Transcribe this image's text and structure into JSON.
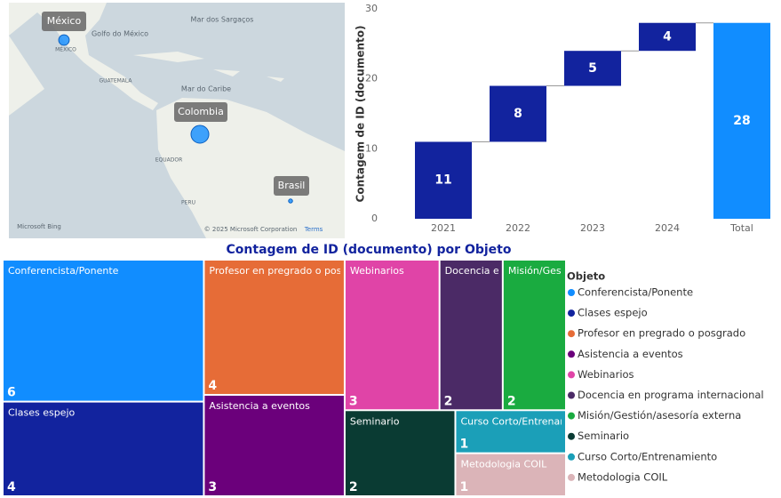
{
  "chart_data": [
    {
      "type": "map",
      "locations": [
        "México",
        "Colombia",
        "Brasil"
      ],
      "values": [
        7,
        20,
        1
      ],
      "color": "#118dff",
      "basemap_labels": [
        "Mar dos Sargaços",
        "Golfo do México",
        "MÉXICO",
        "GUATEMALA",
        "Mar do Caribe",
        "EQUADOR",
        "PERU",
        "Microsoft Bing",
        "© 2025 Microsoft Corporation",
        "Terms"
      ]
    },
    {
      "type": "waterfall",
      "y_label": "Contagem de ID (documento)",
      "categories": [
        "2021",
        "2022",
        "2023",
        "2024",
        "Total"
      ],
      "values": [
        11,
        8,
        5,
        4,
        28
      ],
      "totals": [
        false,
        false,
        false,
        false,
        true
      ],
      "color": "#12239e",
      "total_color": "#118dff",
      "ylim": [
        0,
        30
      ],
      "yticks": [
        0,
        10,
        20,
        30
      ],
      "grid": false
    },
    {
      "type": "treemap",
      "title": "Contagem de ID (documento) por Objeto",
      "legend_title": "Objeto",
      "legend": "right",
      "categories": [
        "Conferencista/Ponente",
        "Clases espejo",
        "Profesor en pregrado o posgrado",
        "Asistencia a eventos",
        "Webinarios",
        "Docencia en programa internacional",
        "Misión/Gestión/asesoría externa",
        "Seminario",
        "Curso Corto/Entrenamiento",
        "Metodologia COIL"
      ],
      "values": [
        6,
        4,
        4,
        3,
        3,
        2,
        2,
        2,
        1,
        1
      ],
      "colors": [
        "#118dff",
        "#12239e",
        "#e66c37",
        "#6b007b",
        "#e044a7",
        "#4b2a66",
        "#1aab40",
        "#0a3b33",
        "#1b9fb8",
        "#dbb4b8"
      ]
    }
  ]
}
